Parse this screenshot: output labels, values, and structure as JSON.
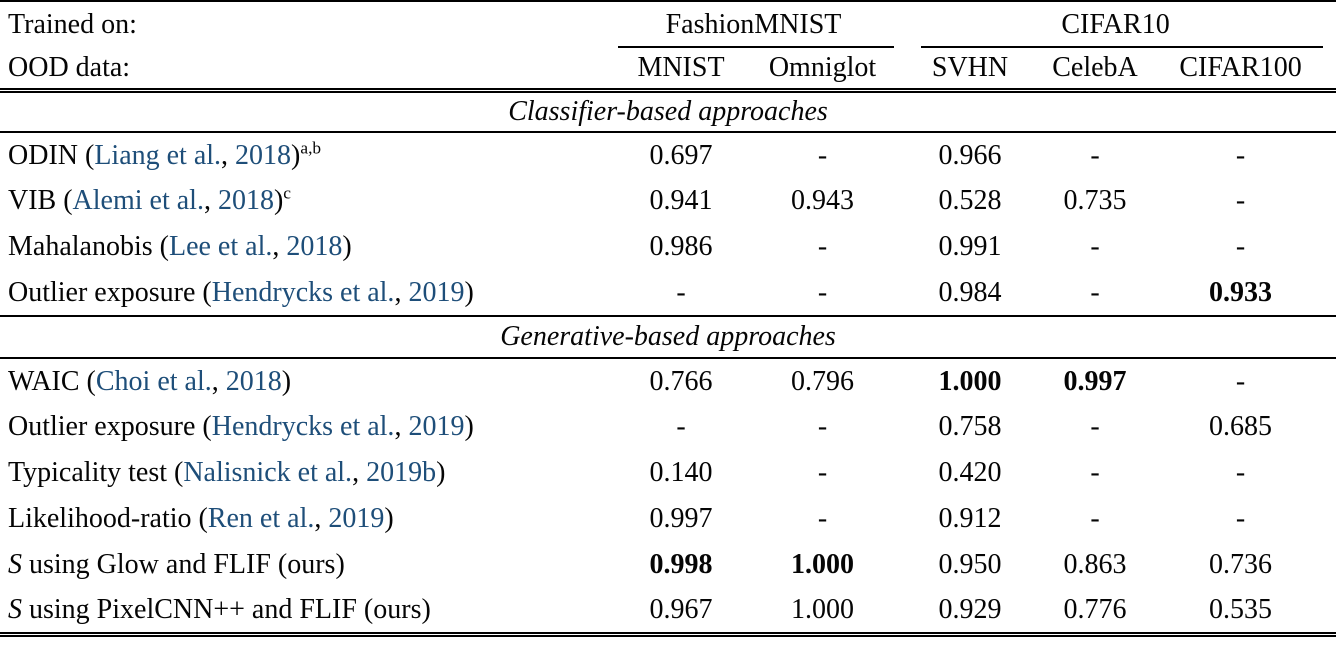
{
  "page": {
    "background": "#ffffff",
    "text_color": "#050505",
    "citation_color": "#1e4e79"
  },
  "header": {
    "trained_on_label": "Trained on:",
    "ood_data_label": "OOD data:",
    "groups": [
      {
        "label": "FashionMNIST",
        "cols": [
          "MNIST",
          "Omniglot"
        ]
      },
      {
        "label": "CIFAR10",
        "cols": [
          "SVHN",
          "CelebA",
          "CIFAR100"
        ]
      }
    ]
  },
  "sections": [
    {
      "title": "Classifier-based approaches",
      "rows": [
        {
          "pre": "ODIN (",
          "authors": "Liang et al.",
          "sep": ", ",
          "year": "2018",
          "close": ")",
          "sup": "a,b",
          "values": [
            "0.697",
            "-",
            "0.966",
            "-",
            "-"
          ],
          "bold": [
            false,
            false,
            false,
            false,
            false
          ]
        },
        {
          "pre": "VIB (",
          "authors": "Alemi et al.",
          "sep": ", ",
          "year": "2018",
          "close": ")",
          "sup": "c",
          "values": [
            "0.941",
            "0.943",
            "0.528",
            "0.735",
            "-"
          ],
          "bold": [
            false,
            false,
            false,
            false,
            false
          ]
        },
        {
          "pre": "Mahalanobis (",
          "authors": "Lee et al.",
          "sep": ", ",
          "year": "2018",
          "close": ")",
          "values": [
            "0.986",
            "-",
            "0.991",
            "-",
            "-"
          ],
          "bold": [
            false,
            false,
            false,
            false,
            false
          ]
        },
        {
          "pre": "Outlier exposure (",
          "authors": "Hendrycks et al.",
          "sep": ", ",
          "year": "2019",
          "close": ")",
          "values": [
            "-",
            "-",
            "0.984",
            "-",
            "0.933"
          ],
          "bold": [
            false,
            false,
            false,
            false,
            true
          ]
        }
      ]
    },
    {
      "title": "Generative-based approaches",
      "rows": [
        {
          "pre": "WAIC (",
          "authors": "Choi et al.",
          "sep": ", ",
          "year": "2018",
          "close": ")",
          "values": [
            "0.766",
            "0.796",
            "1.000",
            "0.997",
            "-"
          ],
          "bold": [
            false,
            false,
            true,
            true,
            false
          ]
        },
        {
          "pre": "Outlier exposure (",
          "authors": "Hendrycks et al.",
          "sep": ", ",
          "year": "2019",
          "close": ")",
          "values": [
            "-",
            "-",
            "0.758",
            "-",
            "0.685"
          ],
          "bold": [
            false,
            false,
            false,
            false,
            false
          ]
        },
        {
          "pre": "Typicality test (",
          "authors": "Nalisnick et al.",
          "sep": ", ",
          "year": "2019b",
          "close": ")",
          "values": [
            "0.140",
            "-",
            "0.420",
            "-",
            "-"
          ],
          "bold": [
            false,
            false,
            false,
            false,
            false
          ]
        },
        {
          "pre": "Likelihood-ratio (",
          "authors": "Ren et al.",
          "sep": ", ",
          "year": "2019",
          "close": ")",
          "values": [
            "0.997",
            "-",
            "0.912",
            "-",
            "-"
          ],
          "bold": [
            false,
            false,
            false,
            false,
            false
          ]
        },
        {
          "pre_italic": "S",
          "pre": " using Glow and FLIF (ours)",
          "values": [
            "0.998",
            "1.000",
            "0.950",
            "0.863",
            "0.736"
          ],
          "bold": [
            true,
            true,
            false,
            false,
            false
          ]
        },
        {
          "pre_italic": "S",
          "pre": " using PixelCNN++ and FLIF (ours)",
          "values": [
            "0.967",
            "1.000",
            "0.929",
            "0.776",
            "0.535"
          ],
          "bold": [
            false,
            false,
            false,
            false,
            false
          ]
        }
      ]
    }
  ]
}
